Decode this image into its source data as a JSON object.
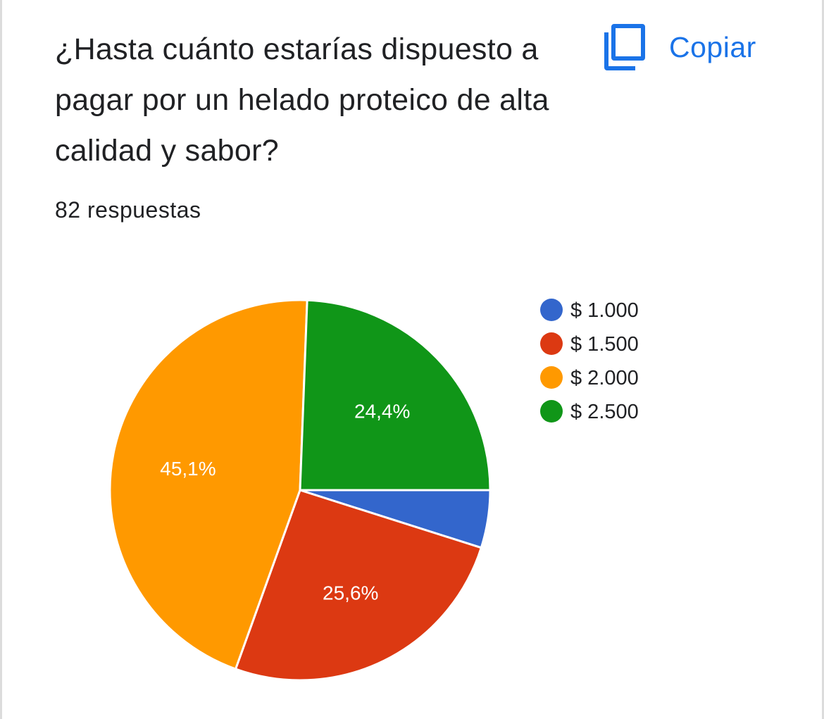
{
  "question": {
    "title": "¿Hasta cuánto estarías dispuesto a pagar por un helado proteico de alta calidad y sabor?",
    "response_count": "82 respuestas"
  },
  "toolbar": {
    "copy_label": "Copiar",
    "copy_icon": "copy-icon"
  },
  "chart_data": {
    "type": "pie",
    "categories": [
      "$ 1.000",
      "$ 1.500",
      "$ 2.000",
      "$ 2.500"
    ],
    "values": [
      4.9,
      25.6,
      45.1,
      24.4
    ],
    "unit": "%",
    "slice_labels": [
      "",
      "25,6%",
      "45,1%",
      "24,4%"
    ],
    "colors": [
      "#3366cc",
      "#dc3912",
      "#ff9900",
      "#109618"
    ],
    "legend_position": "right"
  },
  "colors": {
    "accent": "#1a73e8",
    "text": "#202124"
  }
}
